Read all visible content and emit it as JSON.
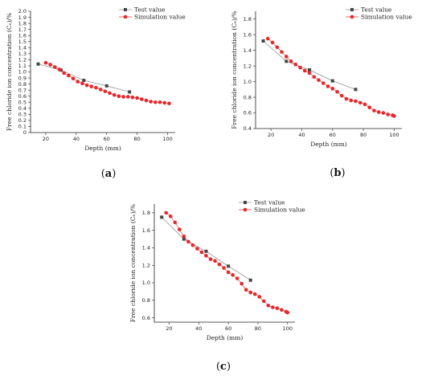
{
  "chart_data": [
    {
      "id": "a",
      "type": "line",
      "caption_letter": "a",
      "xlabel": "Depth (mm)",
      "ylabel": "Free chloride ion concentration (Cₑ)/%",
      "xlim": [
        10,
        105
      ],
      "ylim": [
        0,
        2.0
      ],
      "xticks": [
        20,
        40,
        60,
        80,
        100
      ],
      "yticks": [
        0,
        0.1,
        0.2,
        0.3,
        0.4,
        0.5,
        0.6,
        0.7,
        0.8,
        0.9,
        1.0,
        1.1,
        1.2,
        1.3,
        1.4,
        1.5,
        1.6,
        1.7,
        1.8,
        1.9,
        2.0
      ],
      "ytick_labels": [
        "0",
        "0.1",
        "0.2",
        "0.3",
        "0.4",
        "0.5",
        "0.6",
        "0.7",
        "0.8",
        "0.9",
        "1.0",
        "1.1",
        "1.2",
        "1.3",
        "1.4",
        "1.5",
        "1.6",
        "1.7",
        "1.8",
        "1.9",
        "2.0"
      ],
      "legend": "top-right",
      "series": [
        {
          "name": "Test value",
          "marker": "square",
          "color": "#444444",
          "x": [
            15,
            30,
            45,
            60,
            75
          ],
          "y": [
            1.13,
            1.03,
            0.86,
            0.77,
            0.67
          ]
        },
        {
          "name": "Simulation value",
          "marker": "circle",
          "color": "#e8262b",
          "x": [
            20,
            23,
            26,
            29,
            32,
            35,
            38,
            41,
            44,
            47,
            50,
            53,
            56,
            59,
            62,
            65,
            68,
            71,
            74,
            77,
            80,
            83,
            86,
            89,
            92,
            95,
            98,
            101
          ],
          "y": [
            1.15,
            1.12,
            1.08,
            1.04,
            0.98,
            0.94,
            0.89,
            0.84,
            0.81,
            0.78,
            0.76,
            0.74,
            0.71,
            0.68,
            0.65,
            0.62,
            0.6,
            0.59,
            0.59,
            0.58,
            0.57,
            0.55,
            0.53,
            0.51,
            0.5,
            0.5,
            0.49,
            0.48
          ]
        }
      ]
    },
    {
      "id": "b",
      "type": "line",
      "caption_letter": "b",
      "xlabel": "Depth (mm)",
      "ylabel": "Free chloride ion concentration (Cₑ)/%",
      "xlim": [
        10,
        105
      ],
      "ylim": [
        0.4,
        1.9
      ],
      "xticks": [
        20,
        40,
        60,
        80,
        100
      ],
      "yticks": [
        0.4,
        0.6,
        0.8,
        1.0,
        1.2,
        1.4,
        1.6,
        1.8
      ],
      "ytick_labels": [
        "0.4",
        "0.6",
        "0.8",
        "1.0",
        "1.2",
        "1.4",
        "1.6",
        "1.8"
      ],
      "legend": "top-right",
      "series": [
        {
          "name": "Test value",
          "marker": "square",
          "color": "#444444",
          "x": [
            15,
            30,
            45,
            60,
            75
          ],
          "y": [
            1.52,
            1.26,
            1.15,
            1.01,
            0.9
          ]
        },
        {
          "name": "Simulation value",
          "marker": "circle",
          "color": "#e8262b",
          "x": [
            18,
            21,
            24,
            27,
            30,
            33,
            36,
            39,
            42,
            45,
            48,
            51,
            54,
            57,
            60,
            63,
            66,
            69,
            72,
            75,
            78,
            81,
            84,
            87,
            90,
            93,
            96,
            99,
            100
          ],
          "y": [
            1.55,
            1.5,
            1.44,
            1.38,
            1.32,
            1.26,
            1.22,
            1.18,
            1.14,
            1.11,
            1.06,
            1.02,
            0.98,
            0.94,
            0.91,
            0.87,
            0.82,
            0.78,
            0.76,
            0.75,
            0.73,
            0.71,
            0.67,
            0.63,
            0.61,
            0.6,
            0.58,
            0.57,
            0.56
          ]
        }
      ]
    },
    {
      "id": "c",
      "type": "line",
      "caption_letter": "c",
      "xlabel": "Depth (mm)",
      "ylabel": "Free chloride ion concentration (Cₑ)/%",
      "xlim": [
        10,
        105
      ],
      "ylim": [
        0.55,
        1.9
      ],
      "xticks": [
        20,
        40,
        60,
        80,
        100
      ],
      "yticks": [
        0.6,
        0.8,
        1.0,
        1.2,
        1.4,
        1.6,
        1.8
      ],
      "ytick_labels": [
        "0.6",
        "0.8",
        "1.0",
        "1.2",
        "1.4",
        "1.6",
        "1.8"
      ],
      "legend": "top-right",
      "series": [
        {
          "name": "Test value",
          "marker": "square",
          "color": "#444444",
          "x": [
            15,
            30,
            45,
            60,
            75
          ],
          "y": [
            1.75,
            1.5,
            1.36,
            1.19,
            1.03
          ]
        },
        {
          "name": "Simulation value",
          "marker": "circle",
          "color": "#e8262b",
          "x": [
            18,
            21,
            24,
            27,
            30,
            33,
            36,
            39,
            42,
            45,
            48,
            51,
            54,
            57,
            60,
            63,
            66,
            69,
            72,
            75,
            78,
            81,
            84,
            87,
            90,
            93,
            96,
            99,
            100
          ],
          "y": [
            1.8,
            1.76,
            1.69,
            1.61,
            1.53,
            1.47,
            1.43,
            1.39,
            1.35,
            1.31,
            1.27,
            1.25,
            1.21,
            1.17,
            1.12,
            1.09,
            1.05,
            0.99,
            0.92,
            0.89,
            0.87,
            0.84,
            0.79,
            0.74,
            0.72,
            0.71,
            0.69,
            0.67,
            0.66
          ]
        }
      ]
    }
  ]
}
